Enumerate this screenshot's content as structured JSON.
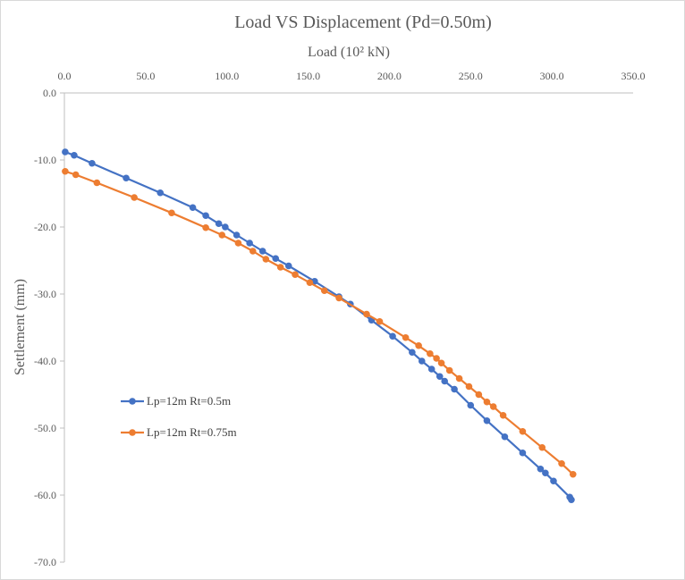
{
  "chart_data": {
    "type": "line",
    "title": "Load VS Displacement  (Pd=0.50m)",
    "xlabel": "Load (10² kN)",
    "ylabel": "Settlement (mm)",
    "xlim": [
      0,
      350
    ],
    "ylim": [
      -70,
      0
    ],
    "x_ticks": [
      "0.0",
      "50.0",
      "100.0",
      "150.0",
      "200.0",
      "250.0",
      "300.0",
      "350.0"
    ],
    "y_ticks": [
      "0.0",
      "-10.0",
      "-20.0",
      "-30.0",
      "-40.0",
      "-50.0",
      "-60.0",
      "-70.0"
    ],
    "x_axis_position": "top",
    "legend_position": "lower-left",
    "series": [
      {
        "name": "Lp=12m Rt=0.5m",
        "color": "#4472c4",
        "points": [
          [
            0.5,
            -8.8
          ],
          [
            6,
            -9.3
          ],
          [
            17,
            -10.5
          ],
          [
            38,
            -12.7
          ],
          [
            59,
            -14.9
          ],
          [
            79,
            -17.1
          ],
          [
            87,
            -18.3
          ],
          [
            95,
            -19.5
          ],
          [
            99,
            -20.0
          ],
          [
            106,
            -21.2
          ],
          [
            114,
            -22.4
          ],
          [
            122,
            -23.6
          ],
          [
            130,
            -24.7
          ],
          [
            138,
            -25.8
          ],
          [
            154,
            -28.1
          ],
          [
            169,
            -30.4
          ],
          [
            176,
            -31.5
          ],
          [
            189,
            -33.9
          ],
          [
            202,
            -36.3
          ],
          [
            214,
            -38.7
          ],
          [
            220,
            -40.0
          ],
          [
            226,
            -41.2
          ],
          [
            231,
            -42.3
          ],
          [
            234,
            -43.0
          ],
          [
            240,
            -44.2
          ],
          [
            250,
            -46.6
          ],
          [
            260,
            -48.9
          ],
          [
            271,
            -51.3
          ],
          [
            282,
            -53.7
          ],
          [
            293,
            -56.1
          ],
          [
            296,
            -56.7
          ],
          [
            301,
            -57.9
          ],
          [
            311,
            -60.3
          ],
          [
            312,
            -60.7
          ]
        ]
      },
      {
        "name": "Lp=12m Rt=0.75m",
        "color": "#ed7d31",
        "points": [
          [
            0.5,
            -11.7
          ],
          [
            7,
            -12.2
          ],
          [
            20,
            -13.4
          ],
          [
            43,
            -15.6
          ],
          [
            66,
            -17.9
          ],
          [
            87,
            -20.1
          ],
          [
            97,
            -21.2
          ],
          [
            107,
            -22.4
          ],
          [
            116,
            -23.6
          ],
          [
            124,
            -24.8
          ],
          [
            133,
            -26.0
          ],
          [
            142,
            -27.1
          ],
          [
            151,
            -28.3
          ],
          [
            160,
            -29.5
          ],
          [
            169,
            -30.6
          ],
          [
            186,
            -33.0
          ],
          [
            194,
            -34.1
          ],
          [
            210,
            -36.5
          ],
          [
            218,
            -37.7
          ],
          [
            225,
            -38.9
          ],
          [
            229,
            -39.6
          ],
          [
            232,
            -40.3
          ],
          [
            237,
            -41.4
          ],
          [
            243,
            -42.6
          ],
          [
            249,
            -43.8
          ],
          [
            255,
            -45.0
          ],
          [
            260,
            -46.1
          ],
          [
            264,
            -46.8
          ],
          [
            270,
            -48.1
          ],
          [
            282,
            -50.5
          ],
          [
            294,
            -52.9
          ],
          [
            306,
            -55.3
          ],
          [
            313,
            -56.9
          ]
        ]
      }
    ]
  }
}
